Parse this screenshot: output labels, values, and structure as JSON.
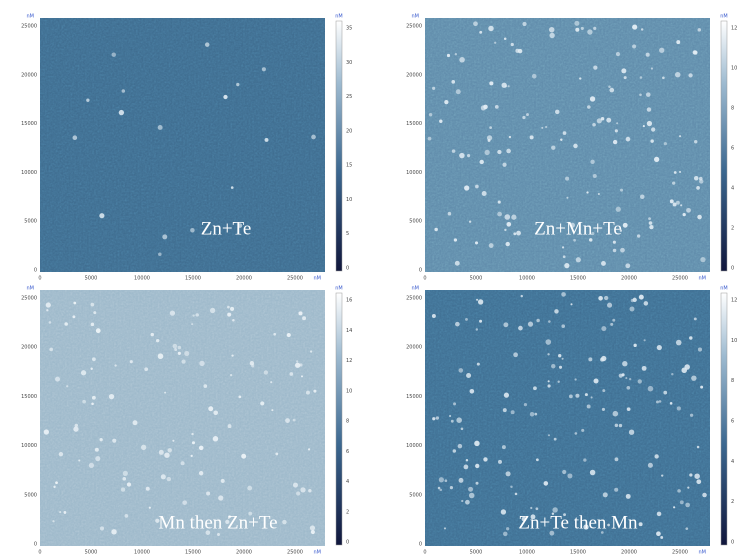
{
  "panels": [
    {
      "label": "Zn+Te",
      "unit": "nM",
      "y_ticks": [
        "25000",
        "20000",
        "15000",
        "10000",
        "5000",
        "0"
      ],
      "x_ticks": [
        "0",
        "5000",
        "10000",
        "15000",
        "20000",
        "25000"
      ],
      "colorbar_unit": "nM",
      "colorbar_ticks": [
        "35",
        "30",
        "25",
        "20",
        "15",
        "10",
        "5",
        "0"
      ]
    },
    {
      "label": "Zn+Mn+Te",
      "unit": "nM",
      "y_ticks": [
        "25000",
        "20000",
        "15000",
        "10000",
        "5000",
        "0"
      ],
      "x_ticks": [
        "0",
        "5000",
        "10000",
        "15000",
        "20000",
        "25000"
      ],
      "colorbar_unit": "nM",
      "colorbar_ticks": [
        "12",
        "10",
        "8",
        "6",
        "4",
        "2",
        "0"
      ]
    },
    {
      "label": "Mn then Zn+Te",
      "unit": "nM",
      "y_ticks": [
        "25000",
        "20000",
        "15000",
        "10000",
        "5000",
        "0"
      ],
      "x_ticks": [
        "0",
        "5000",
        "10000",
        "15000",
        "20000",
        "25000"
      ],
      "colorbar_unit": "nM",
      "colorbar_ticks": [
        "16",
        "14",
        "12",
        "10",
        "8",
        "6",
        "4",
        "2",
        "0"
      ]
    },
    {
      "label": "Zn+Te then Mn",
      "unit": "nM",
      "y_ticks": [
        "25000",
        "20000",
        "15000",
        "10000",
        "5000",
        "0"
      ],
      "x_ticks": [
        "0",
        "5000",
        "10000",
        "15000",
        "20000",
        "25000"
      ],
      "colorbar_unit": "nM",
      "colorbar_ticks": [
        "12",
        "10",
        "8",
        "6",
        "4",
        "2",
        "0"
      ]
    }
  ]
}
